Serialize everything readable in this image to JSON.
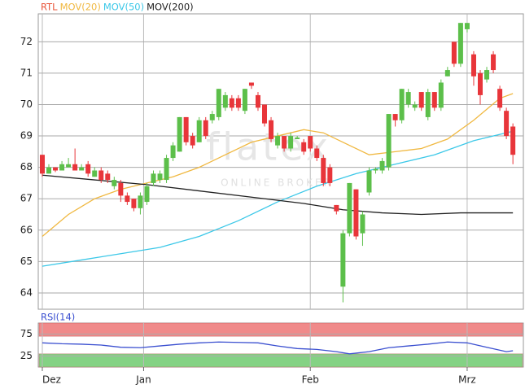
{
  "chart_data": [
    {
      "type": "candlestick",
      "name": "RTL",
      "up_color": "#5cbf4a",
      "down_color": "#e8353a",
      "legend_color": "#e8553a",
      "watermark": [
        "flatex",
        "ONLINE BROKER"
      ],
      "xlim": [
        -0.62,
        73.6
      ],
      "ylim": [
        63.48,
        72.89
      ],
      "yticks": [
        64,
        65,
        66,
        67,
        68,
        69,
        70,
        71,
        72
      ],
      "grid": true,
      "x": [
        0,
        1,
        2,
        3,
        4,
        5,
        6,
        7,
        8,
        9,
        10,
        11,
        12,
        13,
        14,
        15,
        16,
        17,
        18,
        19,
        20,
        21,
        22,
        23,
        24,
        25,
        26,
        27,
        28,
        29,
        30,
        31,
        32,
        33,
        34,
        35,
        36,
        37,
        38,
        39,
        40,
        41,
        42,
        43,
        44,
        45,
        46,
        47,
        48,
        49,
        50,
        51,
        52,
        53,
        54,
        55,
        56,
        57,
        58,
        59,
        60,
        61,
        62,
        63,
        64,
        65,
        66,
        67,
        68,
        69,
        70,
        71,
        72
      ],
      "open": [
        68.4,
        67.8,
        68.0,
        67.9,
        68.0,
        68.1,
        67.9,
        68.1,
        67.7,
        67.9,
        67.8,
        67.4,
        67.5,
        67.1,
        67.0,
        66.7,
        66.9,
        67.5,
        67.6,
        67.6,
        68.3,
        68.5,
        69.6,
        69.0,
        68.8,
        69.5,
        69.5,
        69.6,
        69.9,
        70.2,
        70.2,
        69.8,
        70.7,
        70.3,
        70.0,
        69.5,
        68.7,
        69.0,
        68.6,
        68.9,
        68.8,
        69.0,
        68.6,
        68.3,
        68.0,
        66.8,
        64.2,
        65.9,
        67.3,
        65.9,
        67.2,
        67.9,
        67.9,
        68.0,
        69.7,
        69.5,
        70.0,
        69.9,
        70.4,
        69.6,
        70.4,
        69.9,
        70.9,
        72.0,
        71.3,
        72.4,
        71.6,
        71.0,
        70.8,
        71.6,
        70.5,
        69.8,
        69.3
      ],
      "high": [
        68.4,
        68.1,
        68.0,
        68.2,
        68.3,
        68.6,
        68.1,
        68.2,
        68.0,
        68.0,
        67.9,
        67.7,
        67.6,
        67.2,
        67.0,
        67.2,
        67.5,
        67.9,
        67.9,
        68.4,
        68.8,
        69.6,
        69.6,
        69.1,
        69.6,
        69.6,
        69.8,
        70.5,
        70.4,
        70.3,
        70.3,
        70.5,
        70.7,
        70.4,
        70.0,
        69.6,
        69.1,
        69.0,
        69.1,
        69.0,
        68.9,
        69.0,
        68.7,
        68.4,
        68.1,
        66.8,
        66.0,
        67.5,
        67.3,
        66.6,
        68.0,
        68.0,
        68.3,
        69.7,
        69.7,
        70.5,
        70.5,
        70.1,
        70.4,
        70.5,
        70.4,
        70.8,
        71.2,
        72.0,
        72.6,
        72.6,
        71.7,
        71.1,
        71.2,
        71.7,
        70.6,
        69.9,
        69.4
      ],
      "low": [
        67.7,
        67.8,
        67.85,
        67.9,
        68.0,
        67.9,
        67.9,
        67.7,
        67.7,
        67.5,
        67.5,
        67.3,
        66.9,
        66.8,
        66.6,
        66.5,
        66.8,
        67.4,
        67.5,
        67.5,
        68.2,
        68.5,
        68.7,
        68.6,
        68.8,
        68.9,
        69.4,
        69.5,
        69.8,
        69.8,
        69.8,
        69.7,
        70.5,
        69.8,
        69.3,
        68.8,
        68.6,
        68.5,
        68.5,
        68.9,
        68.4,
        68.5,
        68.2,
        67.4,
        67.4,
        66.5,
        63.7,
        65.8,
        65.7,
        65.5,
        67.1,
        67.8,
        67.8,
        67.9,
        69.3,
        69.4,
        69.9,
        69.8,
        69.8,
        69.5,
        69.8,
        69.8,
        70.9,
        71.2,
        71.2,
        72.3,
        70.6,
        70.0,
        70.7,
        71.0,
        69.8,
        68.9,
        68.1
      ],
      "close": [
        67.8,
        68.0,
        67.9,
        68.1,
        68.1,
        67.9,
        68.0,
        67.8,
        67.9,
        67.6,
        67.6,
        67.6,
        67.1,
        66.9,
        66.7,
        67.1,
        67.4,
        67.8,
        67.8,
        68.3,
        68.7,
        69.6,
        68.8,
        68.7,
        69.5,
        69.0,
        69.7,
        70.5,
        70.3,
        69.9,
        69.9,
        70.5,
        70.6,
        69.9,
        69.4,
        68.9,
        69.0,
        68.6,
        69.0,
        68.95,
        68.5,
        68.6,
        68.3,
        67.5,
        67.5,
        66.6,
        65.9,
        67.5,
        65.8,
        66.5,
        67.9,
        67.95,
        68.2,
        69.7,
        69.5,
        70.5,
        70.4,
        70.0,
        69.9,
        70.4,
        69.9,
        70.7,
        71.1,
        71.3,
        72.6,
        72.6,
        70.9,
        70.3,
        71.1,
        71.1,
        69.9,
        69.0,
        68.4
      ],
      "series": [
        {
          "name": "MOV(20)",
          "color": "#f0b840",
          "x": [
            0,
            4,
            8,
            12,
            16,
            20,
            24,
            28,
            32,
            36,
            40,
            43,
            46,
            50,
            54,
            58,
            62,
            66,
            70,
            72
          ],
          "values": [
            65.8,
            66.5,
            67.0,
            67.3,
            67.5,
            67.7,
            68.0,
            68.4,
            68.8,
            69.0,
            69.2,
            69.1,
            68.8,
            68.4,
            68.5,
            68.6,
            68.9,
            69.5,
            70.2,
            70.35
          ]
        },
        {
          "name": "MOV(50)",
          "color": "#3cc8e8",
          "x": [
            0,
            6,
            12,
            18,
            24,
            30,
            36,
            42,
            48,
            54,
            60,
            66,
            72
          ],
          "values": [
            64.85,
            65.05,
            65.25,
            65.45,
            65.8,
            66.3,
            66.9,
            67.4,
            67.8,
            68.1,
            68.4,
            68.85,
            69.15
          ]
        },
        {
          "name": "MOV(200)",
          "color": "#222222",
          "x": [
            0,
            8,
            16,
            24,
            32,
            40,
            46,
            52,
            58,
            64,
            72
          ],
          "values": [
            67.75,
            67.6,
            67.45,
            67.25,
            67.05,
            66.85,
            66.65,
            66.55,
            66.5,
            66.55,
            66.55
          ]
        }
      ]
    },
    {
      "type": "line",
      "title": "RSI(14)",
      "xlim": [
        -0.62,
        73.6
      ],
      "ylim": [
        0,
        100
      ],
      "yticks": [
        25,
        75
      ],
      "xticks": [
        {
          "value": 0,
          "label": "Dez"
        },
        {
          "value": 15.5,
          "label": "Jan"
        },
        {
          "value": 41,
          "label": "Feb"
        },
        {
          "value": 65,
          "label": "Mrz"
        }
      ],
      "bands": [
        {
          "range": [
            70,
            100
          ],
          "color": "#f08a8a"
        },
        {
          "range": [
            0,
            30
          ],
          "color": "#84d284"
        }
      ],
      "series": [
        {
          "name": "RSI",
          "color": "#3a4fd0",
          "x": [
            0,
            3,
            6,
            9,
            12,
            15,
            18,
            21,
            24,
            27,
            30,
            33,
            36,
            39,
            42,
            45,
            47,
            50,
            53,
            56,
            59,
            62,
            65,
            68,
            71,
            72
          ],
          "values": [
            55,
            53,
            52,
            50,
            45,
            44,
            48,
            52,
            55,
            57,
            56,
            55,
            48,
            42,
            40,
            35,
            30,
            35,
            44,
            48,
            52,
            57,
            55,
            45,
            35,
            37
          ]
        }
      ]
    }
  ]
}
